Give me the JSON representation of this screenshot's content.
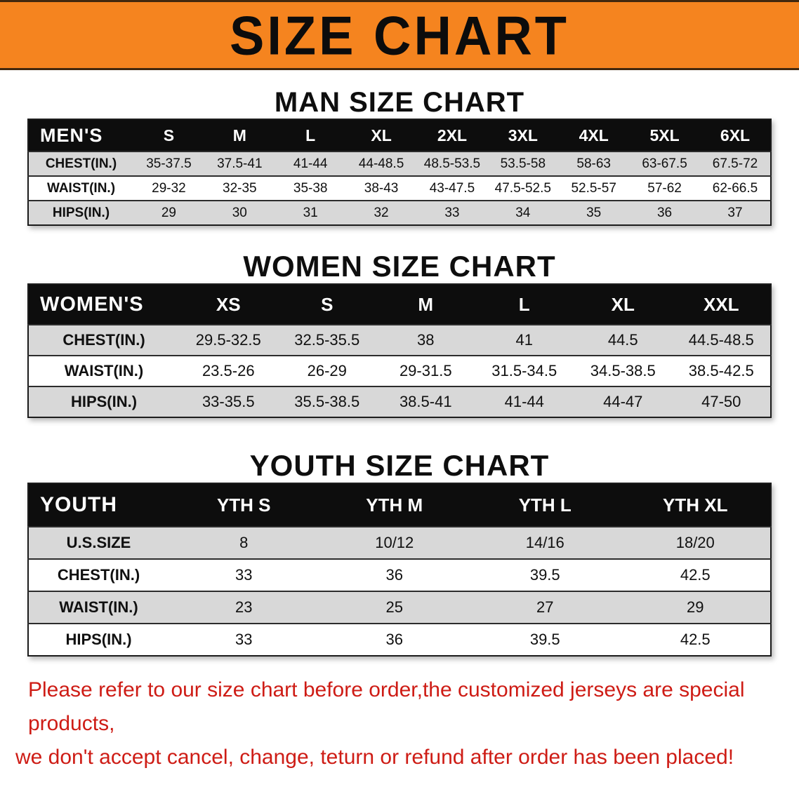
{
  "banner": {
    "title": "SIZE CHART",
    "bg_color": "#f5841f",
    "text_color": "#0c0c0c"
  },
  "chart_data": [
    {
      "type": "table",
      "title": "MAN SIZE CHART",
      "header": [
        "MEN'S",
        "S",
        "M",
        "L",
        "XL",
        "2XL",
        "3XL",
        "4XL",
        "5XL",
        "6XL"
      ],
      "rows": [
        [
          "CHEST(IN.)",
          "35-37.5",
          "37.5-41",
          "41-44",
          "44-48.5",
          "48.5-53.5",
          "53.5-58",
          "58-63",
          "63-67.5",
          "67.5-72"
        ],
        [
          "WAIST(IN.)",
          "29-32",
          "32-35",
          "35-38",
          "38-43",
          "43-47.5",
          "47.5-52.5",
          "52.5-57",
          "57-62",
          "62-66.5"
        ],
        [
          "HIPS(IN.)",
          "29",
          "30",
          "31",
          "32",
          "33",
          "34",
          "35",
          "36",
          "37"
        ]
      ]
    },
    {
      "type": "table",
      "title": "WOMEN SIZE CHART",
      "header": [
        "WOMEN'S",
        "XS",
        "S",
        "M",
        "L",
        "XL",
        "XXL"
      ],
      "rows": [
        [
          "CHEST(IN.)",
          "29.5-32.5",
          "32.5-35.5",
          "38",
          "41",
          "44.5",
          "44.5-48.5"
        ],
        [
          "WAIST(IN.)",
          "23.5-26",
          "26-29",
          "29-31.5",
          "31.5-34.5",
          "34.5-38.5",
          "38.5-42.5"
        ],
        [
          "HIPS(IN.)",
          "33-35.5",
          "35.5-38.5",
          "38.5-41",
          "41-44",
          "44-47",
          "47-50"
        ]
      ]
    },
    {
      "type": "table",
      "title": "YOUTH SIZE CHART",
      "header": [
        "YOUTH",
        "YTH S",
        "YTH M",
        "YTH L",
        "YTH XL"
      ],
      "rows": [
        [
          "U.S.SIZE",
          "8",
          "10/12",
          "14/16",
          "18/20"
        ],
        [
          "CHEST(IN.)",
          "33",
          "36",
          "39.5",
          "42.5"
        ],
        [
          "WAIST(IN.)",
          "23",
          "25",
          "27",
          "29"
        ],
        [
          "HIPS(IN.)",
          "33",
          "36",
          "39.5",
          "42.5"
        ]
      ]
    }
  ],
  "footer": {
    "line1": "Please refer to our size chart before order,the customized jerseys are special products,",
    "line2": "we don't accept cancel, change, teturn or refund after order has been placed!",
    "text_color": "#ce1c15"
  },
  "colors": {
    "table_header_bg": "#0d0d0d",
    "table_shade_row_bg": "#d8d8d8",
    "table_plain_row_bg": "#ffffff"
  }
}
